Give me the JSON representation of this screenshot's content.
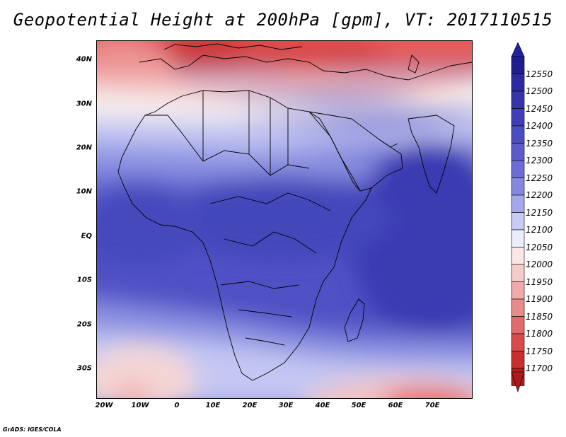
{
  "title": "Geopotential Height at 200hPa [gpm], VT: 2017110515",
  "credit": "GrADS: IGES/COLA",
  "map": {
    "variable": "Geopotential Height",
    "level": "200hPa",
    "units": "gpm",
    "valid_time": "2017110515",
    "lon_range": [
      -22,
      80
    ],
    "lat_range": [
      -37,
      45
    ],
    "lat_ticks": [
      "40N",
      "30N",
      "20N",
      "10N",
      "EQ",
      "10S",
      "20S",
      "30S"
    ],
    "lon_ticks": [
      "20W",
      "10W",
      "0",
      "10E",
      "20E",
      "30E",
      "40E",
      "50E",
      "60E",
      "70E"
    ]
  },
  "colorbar": {
    "labels": [
      "12550",
      "12500",
      "12450",
      "12400",
      "12350",
      "12300",
      "12250",
      "12200",
      "12150",
      "12100",
      "12050",
      "12000",
      "11950",
      "11900",
      "11850",
      "11800",
      "11750",
      "11700"
    ],
    "colors": [
      "#1e1e92",
      "#2a2ba2",
      "#3434ad",
      "#3e3fb8",
      "#4a4cc2",
      "#5a5ccc",
      "#6b6ed6",
      "#8388e0",
      "#a5a9ec",
      "#c8cbf5",
      "#ecedfc",
      "#fbe6e6",
      "#f7caca",
      "#f1aaaa",
      "#ea8a8a",
      "#e36a6a",
      "#d94a4a",
      "#c92e2e",
      "#b31c1c"
    ],
    "arrow_top_color": "#2222a0",
    "arrow_bottom_color": "#b01818"
  }
}
